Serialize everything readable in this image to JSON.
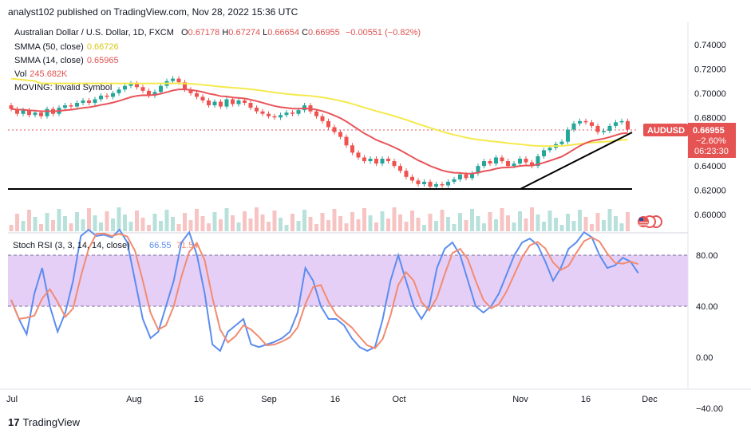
{
  "header": {
    "text": "analyst102 published on TradingView.com, Nov 28, 2022 15:36 UTC"
  },
  "symbol": {
    "name": "Australian Dollar / U.S. Dollar, 1D, FXCM",
    "o_label": "O",
    "o": "0.67178",
    "h_label": "H",
    "h": "0.67274",
    "l_label": "L",
    "l": "0.66654",
    "c_label": "C",
    "c": "0.66955",
    "change": "−0.00551 (−0.82%)"
  },
  "indicators": {
    "sma50_label": "SMMA (50, close)",
    "sma50_value": "0.66726",
    "sma14_label": "SMMA (14, close)",
    "sma14_value": "0.65965",
    "vol_label": "Vol",
    "vol_value": "245.682K",
    "moving_label": "MOVING: Invalid Symbol"
  },
  "stoch": {
    "label": "Stoch RSI (3, 3, 14, 14, close)",
    "k": "66.55",
    "d": "71.54"
  },
  "price_axis": [
    "0.74000",
    "0.72000",
    "0.70000",
    "0.68000",
    "0.64000",
    "0.62000",
    "0.60000"
  ],
  "price_tag": {
    "symbol": "AUDUSD",
    "price": "0.66955",
    "change": "−2.60%",
    "timer": "06:23:30"
  },
  "stoch_axis": [
    "80.00",
    "40.00",
    "0.00",
    "−40.00"
  ],
  "time_axis": [
    "Jul",
    "Aug",
    "16",
    "Sep",
    "16",
    "Oct",
    "Nov",
    "16",
    "Dec"
  ],
  "footer": {
    "brand": "TradingView"
  },
  "colors": {
    "up": "#26a69a",
    "down": "#ef5350",
    "sma50": "#f5e94c",
    "sma14": "#e8545a",
    "k": "#5b8def",
    "d": "#f28b70",
    "band": "#e6cff7",
    "tag": "#e55353"
  }
}
